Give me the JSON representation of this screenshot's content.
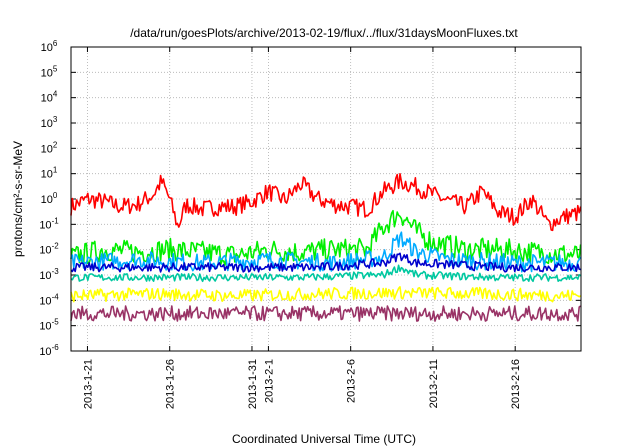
{
  "chart_data": {
    "type": "line",
    "title": "/data/run/goesPlots/archive/2013-02-19/flux/../flux/31daysMoonFluxes.txt",
    "xlabel": "Coordinated Universal Time (UTC)",
    "ylabel": "protons/cm²-s-sr-MeV",
    "yscale": "log",
    "ylim": [
      -6,
      6
    ],
    "y_ticks": [
      {
        "exp": -6,
        "base": "10",
        "sup": "-6"
      },
      {
        "exp": -5,
        "base": "10",
        "sup": "-5"
      },
      {
        "exp": -4,
        "base": "10",
        "sup": "-4"
      },
      {
        "exp": -3,
        "base": "10",
        "sup": "-3"
      },
      {
        "exp": -2,
        "base": "10",
        "sup": "-2"
      },
      {
        "exp": -1,
        "base": "10",
        "sup": "-1"
      },
      {
        "exp": 0,
        "base": "10",
        "sup": "0"
      },
      {
        "exp": 1,
        "base": "10",
        "sup": "1"
      },
      {
        "exp": 2,
        "base": "10",
        "sup": "2"
      },
      {
        "exp": 3,
        "base": "10",
        "sup": "3"
      },
      {
        "exp": 4,
        "base": "10",
        "sup": "4"
      },
      {
        "exp": 5,
        "base": "10",
        "sup": "5"
      },
      {
        "exp": 6,
        "base": "10",
        "sup": "6"
      }
    ],
    "xlim": [
      "2013-01-20",
      "2013-02-20"
    ],
    "x_ticks": [
      {
        "date": "2013-01-21",
        "label": "2013-1-21"
      },
      {
        "date": "2013-01-26",
        "label": "2013-1-26"
      },
      {
        "date": "2013-01-31",
        "label": "2013-1-31"
      },
      {
        "date": "2013-02-01",
        "label": "2013-2-1"
      },
      {
        "date": "2013-02-06",
        "label": "2013-2-6"
      },
      {
        "date": "2013-02-11",
        "label": "2013-2-11"
      },
      {
        "date": "2013-02-16",
        "label": "2013-2-16"
      }
    ],
    "grid": true,
    "series": [
      {
        "color": "#ff0000",
        "samples": [
          [
            "2013-01-20",
            0.5
          ],
          [
            "2013-01-21",
            1.0
          ],
          [
            "2013-01-22",
            0.8
          ],
          [
            "2013-01-23",
            0.5
          ],
          [
            "2013-01-24",
            0.6
          ],
          [
            "2013-01-25",
            1.5
          ],
          [
            "2013-01-25T12:00",
            5.0
          ],
          [
            "2013-01-26",
            1.0
          ],
          [
            "2013-01-26T12:00",
            0.08
          ],
          [
            "2013-01-27",
            0.6
          ],
          [
            "2013-01-28",
            0.4
          ],
          [
            "2013-01-29",
            0.5
          ],
          [
            "2013-01-30",
            0.5
          ],
          [
            "2013-01-31",
            0.8
          ],
          [
            "2013-02-01",
            2.0
          ],
          [
            "2013-02-02",
            0.9
          ],
          [
            "2013-02-03",
            4.0
          ],
          [
            "2013-02-04",
            1.0
          ],
          [
            "2013-02-05",
            0.6
          ],
          [
            "2013-02-06",
            0.5
          ],
          [
            "2013-02-07",
            0.4
          ],
          [
            "2013-02-08",
            2.0
          ],
          [
            "2013-02-09",
            5.0
          ],
          [
            "2013-02-10",
            3.0
          ],
          [
            "2013-02-11",
            1.5
          ],
          [
            "2013-02-12",
            0.8
          ],
          [
            "2013-02-13",
            0.5
          ],
          [
            "2013-02-14",
            2.0
          ],
          [
            "2013-02-15",
            0.3
          ],
          [
            "2013-02-16",
            0.2
          ],
          [
            "2013-02-17",
            1.0
          ],
          [
            "2013-02-18",
            0.1
          ],
          [
            "2013-02-19",
            0.2
          ],
          [
            "2013-02-20",
            0.3
          ]
        ]
      },
      {
        "color": "#00ee00",
        "samples": [
          [
            "2013-01-20",
            0.005
          ],
          [
            "2013-01-22",
            0.01
          ],
          [
            "2013-01-24",
            0.008
          ],
          [
            "2013-01-26",
            0.01
          ],
          [
            "2013-01-28",
            0.008
          ],
          [
            "2013-01-30",
            0.006
          ],
          [
            "2013-02-01",
            0.01
          ],
          [
            "2013-02-03",
            0.008
          ],
          [
            "2013-02-05",
            0.01
          ],
          [
            "2013-02-07",
            0.01
          ],
          [
            "2013-02-08",
            0.08
          ],
          [
            "2013-02-09",
            0.3
          ],
          [
            "2013-02-10",
            0.05
          ],
          [
            "2013-02-11",
            0.02
          ],
          [
            "2013-02-13",
            0.01
          ],
          [
            "2013-02-15",
            0.01
          ],
          [
            "2013-02-17",
            0.008
          ],
          [
            "2013-02-20",
            0.006
          ]
        ]
      },
      {
        "color": "#00aaff",
        "samples": [
          [
            "2013-01-20",
            0.003
          ],
          [
            "2013-01-24",
            0.004
          ],
          [
            "2013-01-28",
            0.003
          ],
          [
            "2013-02-01",
            0.004
          ],
          [
            "2013-02-05",
            0.003
          ],
          [
            "2013-02-08",
            0.005
          ],
          [
            "2013-02-09",
            0.03
          ],
          [
            "2013-02-10",
            0.008
          ],
          [
            "2013-02-12",
            0.004
          ],
          [
            "2013-02-16",
            0.003
          ],
          [
            "2013-02-20",
            0.003
          ]
        ]
      },
      {
        "color": "#0000cc",
        "samples": [
          [
            "2013-01-20",
            0.002
          ],
          [
            "2013-01-25",
            0.002
          ],
          [
            "2013-01-30",
            0.002
          ],
          [
            "2013-02-04",
            0.002
          ],
          [
            "2013-02-08",
            0.003
          ],
          [
            "2013-02-09",
            0.006
          ],
          [
            "2013-02-10",
            0.003
          ],
          [
            "2013-02-15",
            0.002
          ],
          [
            "2013-02-20",
            0.002
          ]
        ]
      },
      {
        "color": "#00c8a0",
        "samples": [
          [
            "2013-01-20",
            0.0008
          ],
          [
            "2013-01-27",
            0.0008
          ],
          [
            "2013-02-03",
            0.0008
          ],
          [
            "2013-02-08",
            0.001
          ],
          [
            "2013-02-09",
            0.002
          ],
          [
            "2013-02-10",
            0.001
          ],
          [
            "2013-02-15",
            0.0008
          ],
          [
            "2013-02-20",
            0.0008
          ]
        ]
      },
      {
        "color": "#ffff00",
        "samples": [
          [
            "2013-01-20",
            0.00015
          ],
          [
            "2013-01-25",
            0.00018
          ],
          [
            "2013-01-30",
            0.00015
          ],
          [
            "2013-02-04",
            0.00018
          ],
          [
            "2013-02-09",
            0.0002
          ],
          [
            "2013-02-14",
            0.00018
          ],
          [
            "2013-02-20",
            0.00015
          ]
        ]
      },
      {
        "color": "#993366",
        "samples": [
          [
            "2013-01-20",
            3e-05
          ],
          [
            "2013-01-25",
            3e-05
          ],
          [
            "2013-01-30",
            3e-05
          ],
          [
            "2013-02-04",
            3e-05
          ],
          [
            "2013-02-09",
            3e-05
          ],
          [
            "2013-02-14",
            3e-05
          ],
          [
            "2013-02-20",
            3e-05
          ]
        ]
      }
    ]
  }
}
